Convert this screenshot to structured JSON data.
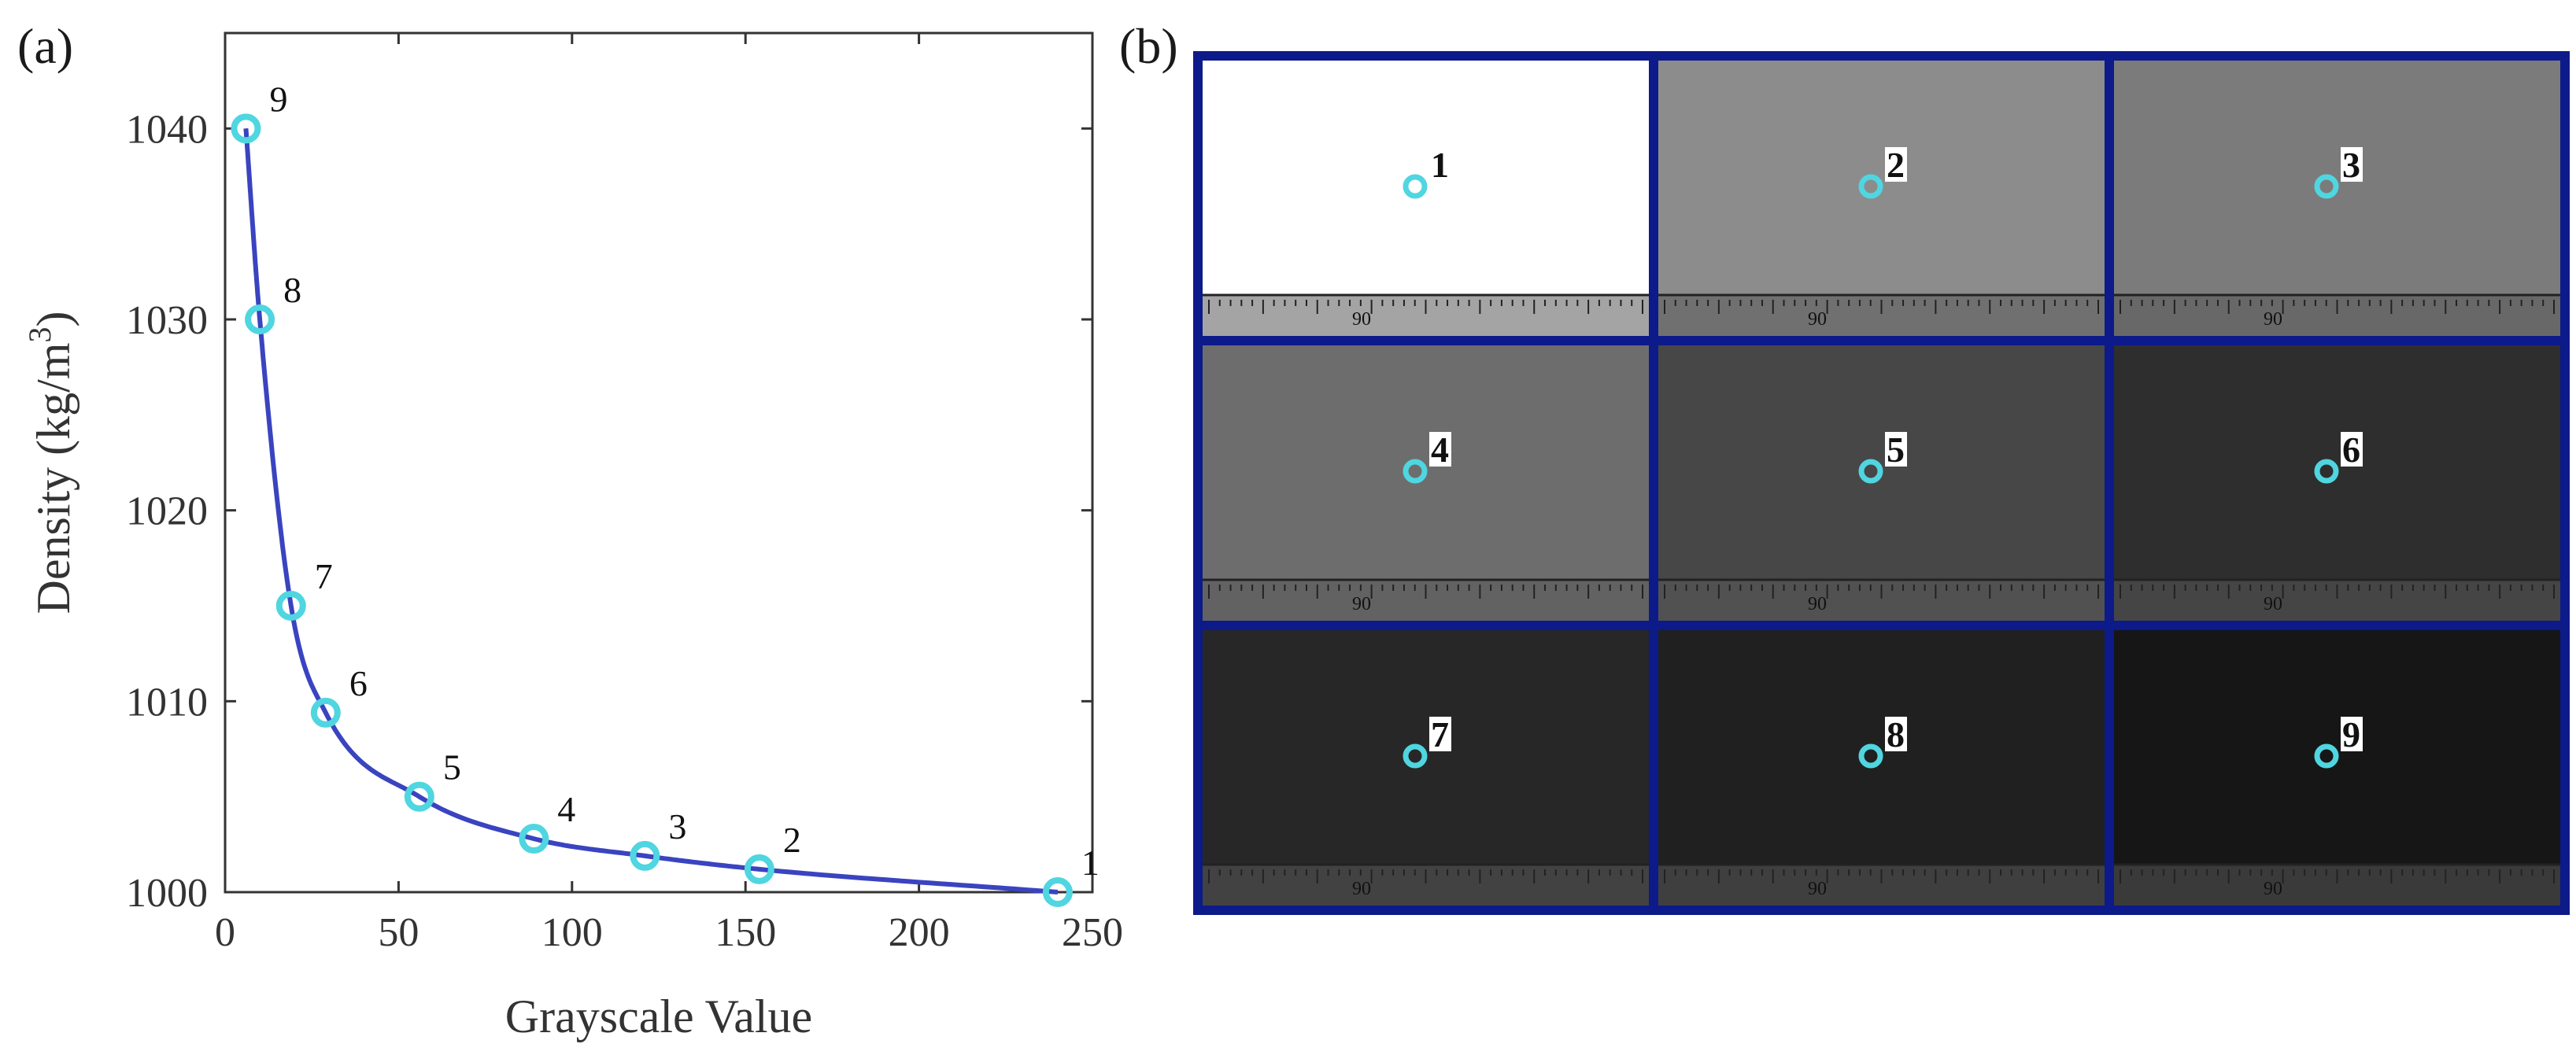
{
  "panel_a": {
    "label": "(a)"
  },
  "panel_b": {
    "label": "(b)"
  },
  "colors": {
    "curve": "#3a44c0",
    "marker": "#4fd6e0",
    "grid_frame": "#0c1a8a"
  },
  "chart_data": {
    "type": "line",
    "xlabel": "Grayscale Value",
    "ylabel": "Density (kg/m³)",
    "ylabel_main": "Density (kg/m",
    "ylabel_sup": "3",
    "ylabel_end": ")",
    "xlim": [
      0,
      250
    ],
    "ylim": [
      1000,
      1045
    ],
    "xticks": [
      0,
      50,
      100,
      150,
      200,
      250
    ],
    "yticks": [
      1000,
      1010,
      1020,
      1030,
      1040
    ],
    "grid": false,
    "points": [
      {
        "label": "1",
        "x": 240,
        "y": 1000
      },
      {
        "label": "2",
        "x": 154,
        "y": 1001.2
      },
      {
        "label": "3",
        "x": 121,
        "y": 1001.9
      },
      {
        "label": "4",
        "x": 89,
        "y": 1002.8
      },
      {
        "label": "5",
        "x": 56,
        "y": 1005
      },
      {
        "label": "6",
        "x": 29,
        "y": 1009.4
      },
      {
        "label": "7",
        "x": 19,
        "y": 1015
      },
      {
        "label": "8",
        "x": 10,
        "y": 1030
      },
      {
        "label": "9",
        "x": 6,
        "y": 1040
      }
    ]
  },
  "image_grid": {
    "ruler_text": "90",
    "tiles": [
      {
        "label": "1",
        "gray": "#ffffff"
      },
      {
        "label": "2",
        "gray": "#8c8c8c"
      },
      {
        "label": "3",
        "gray": "#7b7b7b"
      },
      {
        "label": "4",
        "gray": "#6d6d6d"
      },
      {
        "label": "5",
        "gray": "#474747"
      },
      {
        "label": "6",
        "gray": "#2e2e2e"
      },
      {
        "label": "7",
        "gray": "#272727"
      },
      {
        "label": "8",
        "gray": "#202020"
      },
      {
        "label": "9",
        "gray": "#161616"
      }
    ]
  }
}
